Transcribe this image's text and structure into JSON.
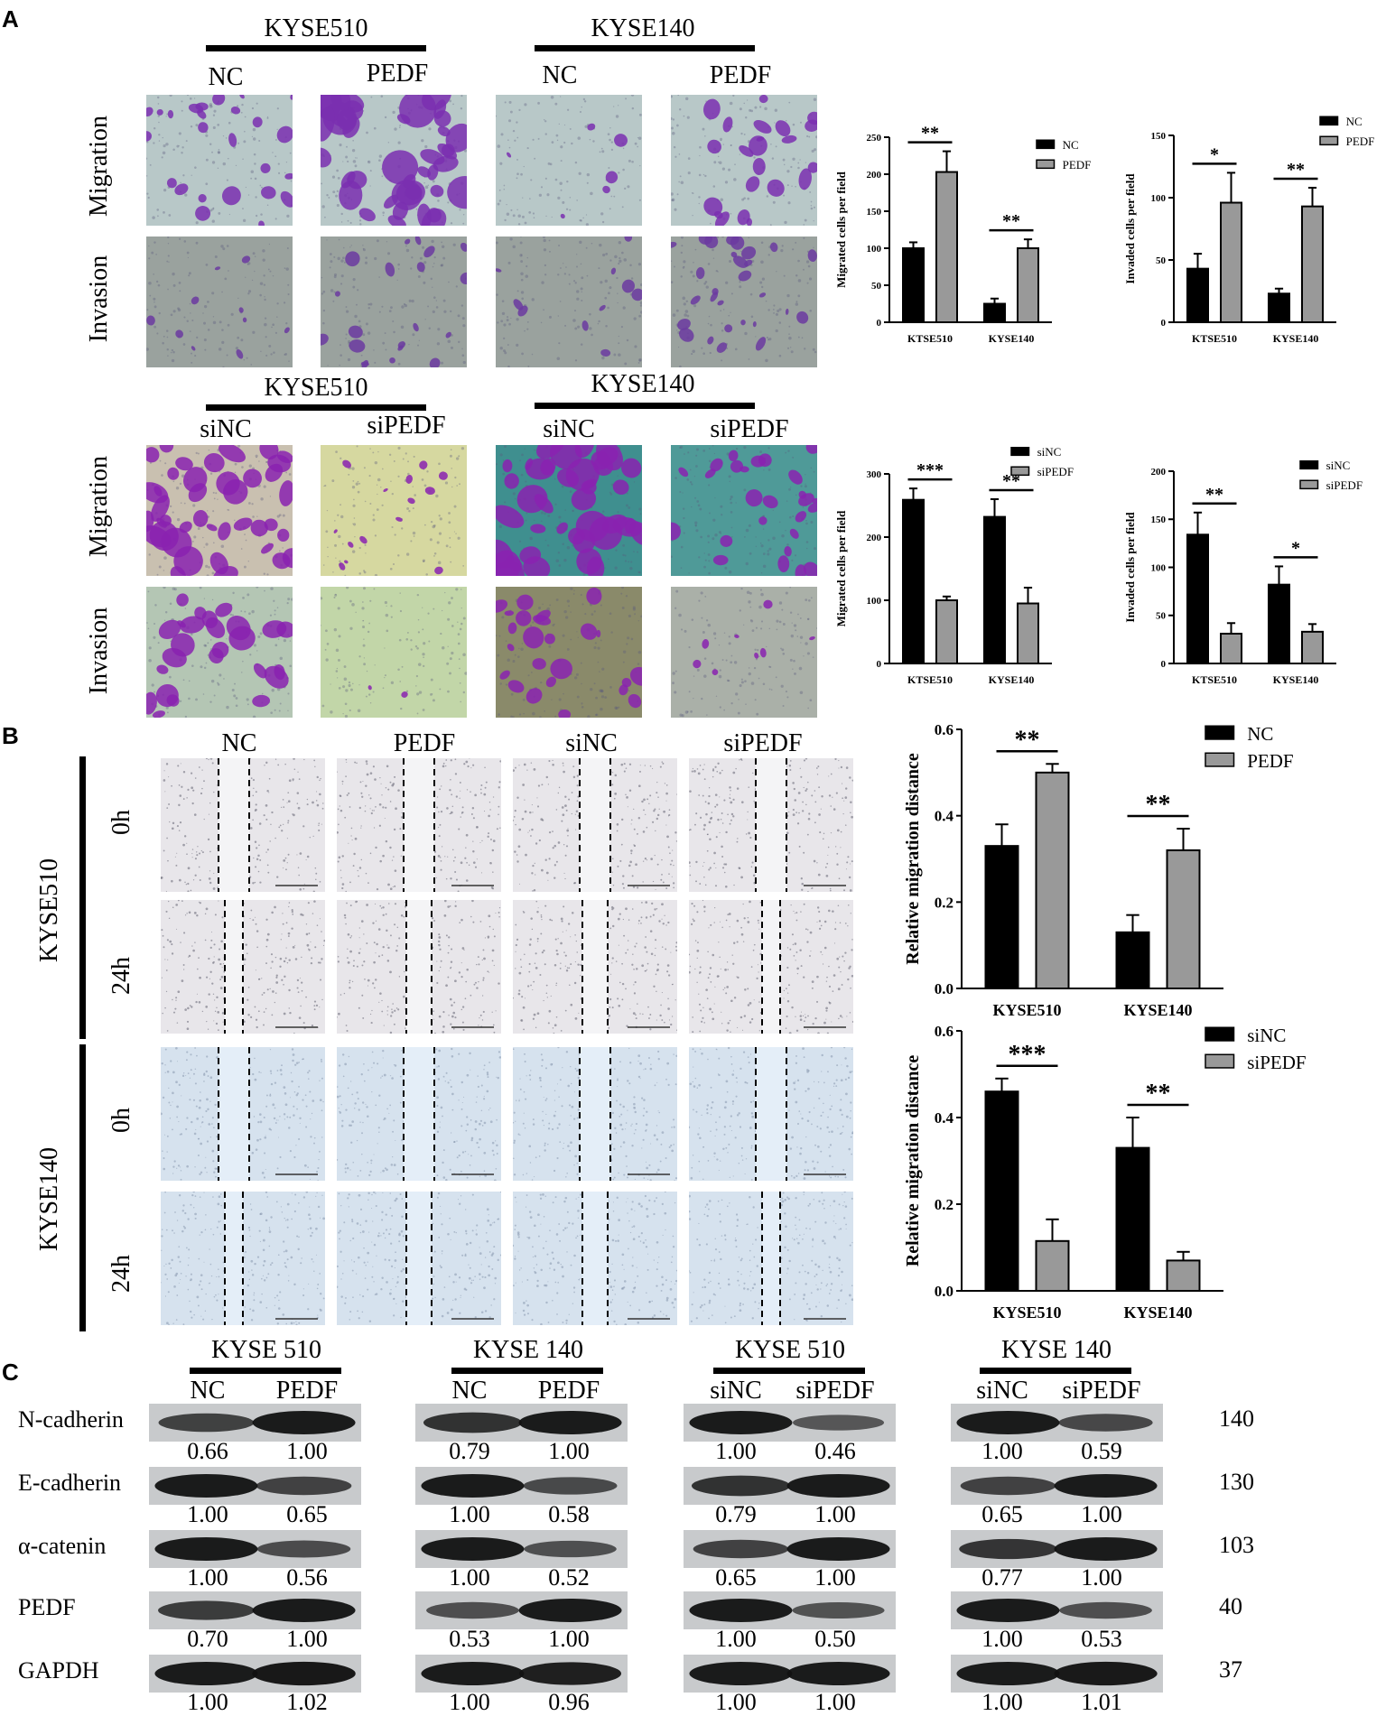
{
  "panels": {
    "a": "A",
    "b": "B",
    "c": "C"
  },
  "colors": {
    "migration_purple": "#7a2fb0",
    "bar_black": "#000000",
    "bar_gray": "#999999",
    "scratch_blue": "#cfe0f0"
  },
  "panelA": {
    "top": {
      "cell_lines": [
        "KYSE510",
        "KYSE140"
      ],
      "conditions": [
        "NC",
        "PEDF",
        "NC",
        "PEDF"
      ],
      "rows": [
        "Migration",
        "Invasion"
      ]
    },
    "bottom": {
      "cell_lines": [
        "KYSE510",
        "KYSE140"
      ],
      "conditions": [
        "siNC",
        "siPEDF",
        "siNC",
        "siPEDF"
      ],
      "rows": [
        "Migration",
        "Invasion"
      ]
    }
  },
  "panelB": {
    "conditions": [
      "NC",
      "PEDF",
      "siNC",
      "siPEDF"
    ],
    "cell_lines": [
      "KYSE510",
      "KYSE140"
    ],
    "times": [
      "0h",
      "24h",
      "0h",
      "24h"
    ]
  },
  "panelC": {
    "groups": [
      {
        "cell": "KYSE 510",
        "conds": [
          "NC",
          "PEDF"
        ]
      },
      {
        "cell": "KYSE 140",
        "conds": [
          "NC",
          "PEDF"
        ]
      },
      {
        "cell": "KYSE 510",
        "conds": [
          "siNC",
          "siPEDF"
        ]
      },
      {
        "cell": "KYSE 140",
        "conds": [
          "siNC",
          "siPEDF"
        ]
      }
    ],
    "proteins": [
      "N-cadherin",
      "E-cadherin",
      "α-catenin",
      "PEDF",
      "GAPDH"
    ],
    "kda": [
      "140",
      "130",
      "103",
      "40",
      "37"
    ],
    "values": [
      [
        [
          "0.66",
          "1.00"
        ],
        [
          "0.79",
          "1.00"
        ],
        [
          "1.00",
          "0.46"
        ],
        [
          "1.00",
          "0.59"
        ]
      ],
      [
        [
          "1.00",
          "0.65"
        ],
        [
          "1.00",
          "0.58"
        ],
        [
          "0.79",
          "1.00"
        ],
        [
          "0.65",
          "1.00"
        ]
      ],
      [
        [
          "1.00",
          "0.56"
        ],
        [
          "1.00",
          "0.52"
        ],
        [
          "0.65",
          "1.00"
        ],
        [
          "0.77",
          "1.00"
        ]
      ],
      [
        [
          "0.70",
          "1.00"
        ],
        [
          "0.53",
          "1.00"
        ],
        [
          "1.00",
          "0.50"
        ],
        [
          "1.00",
          "0.53"
        ]
      ],
      [
        [
          "1.00",
          "1.02"
        ],
        [
          "1.00",
          "0.96"
        ],
        [
          "1.00",
          "1.00"
        ],
        [
          "1.00",
          "1.01"
        ]
      ]
    ]
  },
  "chart_data": [
    {
      "id": "A1",
      "type": "bar",
      "categories": [
        "KTSE510",
        "KYSE140"
      ],
      "series": [
        {
          "name": "NC",
          "values": [
            100,
            25
          ],
          "err": [
            8,
            7
          ]
        },
        {
          "name": "PEDF",
          "values": [
            203,
            100
          ],
          "err": [
            28,
            12
          ]
        }
      ],
      "ylabel": "Migrated cells per field",
      "ylim": [
        0,
        250
      ],
      "yticks": [
        0,
        50,
        100,
        150,
        200,
        250
      ],
      "sig": [
        "**",
        "**"
      ],
      "legend": "top-right"
    },
    {
      "id": "A2",
      "type": "bar",
      "categories": [
        "KTSE510",
        "KYSE140"
      ],
      "series": [
        {
          "name": "NC",
          "values": [
            43,
            23
          ],
          "err": [
            12,
            4
          ]
        },
        {
          "name": "PEDF",
          "values": [
            96,
            93
          ],
          "err": [
            24,
            15
          ]
        }
      ],
      "ylabel": "Invaded cells per field",
      "ylim": [
        0,
        150
      ],
      "yticks": [
        0,
        50,
        100,
        150
      ],
      "sig": [
        "*",
        "**"
      ],
      "legend": "top-right"
    },
    {
      "id": "A3",
      "type": "bar",
      "categories": [
        "KTSE510",
        "KYSE140"
      ],
      "series": [
        {
          "name": "siNC",
          "values": [
            259,
            232
          ],
          "err": [
            18,
            28
          ]
        },
        {
          "name": "siPEDF",
          "values": [
            100,
            95
          ],
          "err": [
            6,
            25
          ]
        }
      ],
      "ylabel": "Migrated cells per field",
      "ylim": [
        0,
        300
      ],
      "yticks": [
        0,
        100,
        200,
        300
      ],
      "sig": [
        "***",
        "**"
      ],
      "legend": "top-right"
    },
    {
      "id": "A4",
      "type": "bar",
      "categories": [
        "KTSE510",
        "KYSE140"
      ],
      "series": [
        {
          "name": "siNC",
          "values": [
            134,
            82
          ],
          "err": [
            23,
            19
          ]
        },
        {
          "name": "siPEDF",
          "values": [
            31,
            33
          ],
          "err": [
            11,
            8
          ]
        }
      ],
      "ylabel": "Invaded cells per field",
      "ylim": [
        0,
        200
      ],
      "yticks": [
        0,
        50,
        100,
        150,
        200
      ],
      "sig": [
        "**",
        "*"
      ],
      "legend": "top-right"
    },
    {
      "id": "B1",
      "type": "bar",
      "categories": [
        "KYSE510",
        "KYSE140"
      ],
      "series": [
        {
          "name": "NC",
          "values": [
            0.33,
            0.13
          ],
          "err": [
            0.05,
            0.04
          ]
        },
        {
          "name": "PEDF",
          "values": [
            0.5,
            0.32
          ],
          "err": [
            0.02,
            0.05
          ]
        }
      ],
      "ylabel": "Relative migration distance",
      "ylim": [
        0,
        0.6
      ],
      "yticks": [
        "0.0",
        "0.2",
        "0.4",
        "0.6"
      ],
      "sig": [
        "**",
        "**"
      ],
      "legend": "top-right"
    },
    {
      "id": "B2",
      "type": "bar",
      "categories": [
        "KYSE510",
        "KYSE140"
      ],
      "series": [
        {
          "name": "siNC",
          "values": [
            0.46,
            0.33
          ],
          "err": [
            0.03,
            0.07
          ]
        },
        {
          "name": "siPEDF",
          "values": [
            0.115,
            0.07
          ],
          "err": [
            0.05,
            0.02
          ]
        }
      ],
      "ylabel": "Relative migration distance",
      "ylim": [
        0,
        0.6
      ],
      "yticks": [
        "0.0",
        "0.2",
        "0.4",
        "0.6"
      ],
      "sig": [
        "***",
        "**"
      ],
      "legend": "top-right"
    }
  ]
}
